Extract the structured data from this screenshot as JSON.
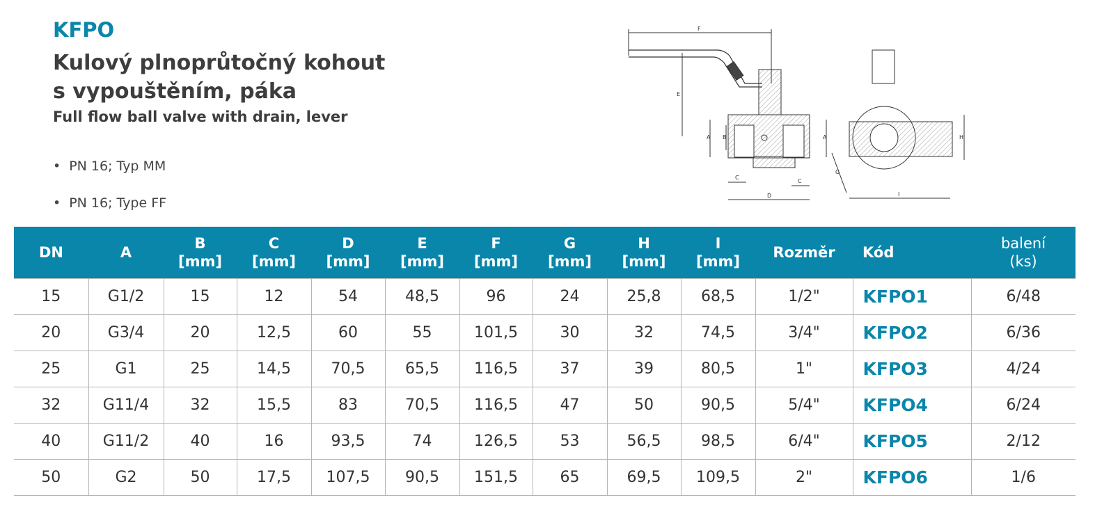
{
  "product_code": "KFPO",
  "title_line1": "Kulový plnoprůtočný kohout",
  "title_line2": "s vypouštěním, páka",
  "subtitle": "Full flow ball valve with drain, lever",
  "bullets": [
    "PN 16; Typ MM",
    "PN 16; Type FF"
  ],
  "drawing_labels": {
    "F": "F",
    "E": "E",
    "A": "A",
    "B": "B",
    "C": "C",
    "D": "D",
    "G": "G",
    "H": "H",
    "I": "I"
  },
  "accent_color": "#0a86ab",
  "table": {
    "headers": [
      {
        "l1": "DN",
        "l2": ""
      },
      {
        "l1": "A",
        "l2": ""
      },
      {
        "l1": "B",
        "l2": "[mm]"
      },
      {
        "l1": "C",
        "l2": "[mm]"
      },
      {
        "l1": "D",
        "l2": "[mm]"
      },
      {
        "l1": "E",
        "l2": "[mm]"
      },
      {
        "l1": "F",
        "l2": "[mm]"
      },
      {
        "l1": "G",
        "l2": "[mm]"
      },
      {
        "l1": "H",
        "l2": "[mm]"
      },
      {
        "l1": "I",
        "l2": "[mm]"
      },
      {
        "l1": "Rozměr",
        "l2": ""
      },
      {
        "l1": "Kód",
        "l2": ""
      },
      {
        "l1": "balení",
        "l2": "(ks)"
      }
    ],
    "rows": [
      [
        "15",
        "G1/2",
        "15",
        "12",
        "54",
        "48,5",
        "96",
        "24",
        "25,8",
        "68,5",
        "1/2\"",
        "KFPO1",
        "6/48"
      ],
      [
        "20",
        "G3/4",
        "20",
        "12,5",
        "60",
        "55",
        "101,5",
        "30",
        "32",
        "74,5",
        "3/4\"",
        "KFPO2",
        "6/36"
      ],
      [
        "25",
        "G1",
        "25",
        "14,5",
        "70,5",
        "65,5",
        "116,5",
        "37",
        "39",
        "80,5",
        "1\"",
        "KFPO3",
        "4/24"
      ],
      [
        "32",
        "G11/4",
        "32",
        "15,5",
        "83",
        "70,5",
        "116,5",
        "47",
        "50",
        "90,5",
        "5/4\"",
        "KFPO4",
        "6/24"
      ],
      [
        "40",
        "G11/2",
        "40",
        "16",
        "93,5",
        "74",
        "126,5",
        "53",
        "56,5",
        "98,5",
        "6/4\"",
        "KFPO5",
        "2/12"
      ],
      [
        "50",
        "G2",
        "50",
        "17,5",
        "107,5",
        "90,5",
        "151,5",
        "65",
        "69,5",
        "109,5",
        "2\"",
        "KFPO6",
        "1/6"
      ]
    ]
  }
}
